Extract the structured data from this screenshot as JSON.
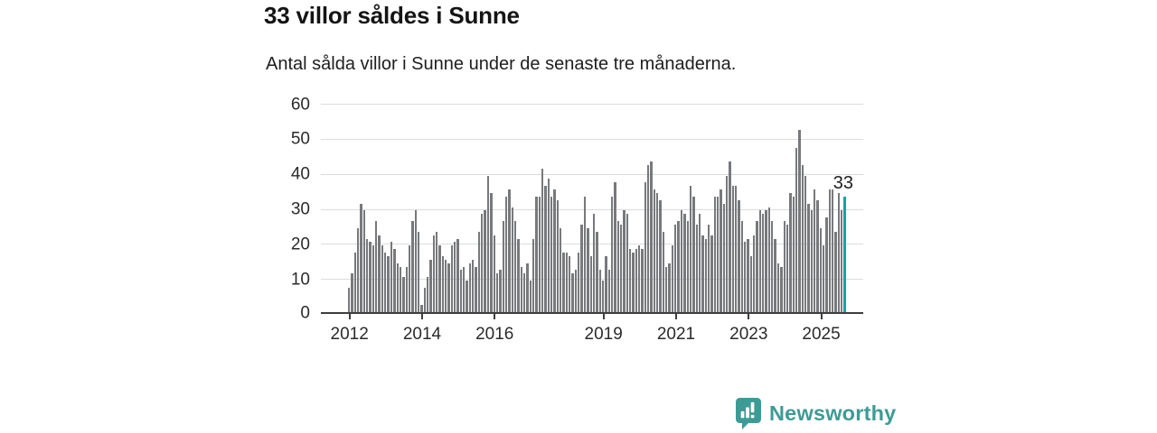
{
  "header": {
    "title": "33 villor såldes i Sunne",
    "subtitle": "Antal sålda villor i Sunne under de senaste tre månaderna."
  },
  "chart_data": {
    "type": "bar",
    "title": "33 villor såldes i Sunne",
    "subtitle": "Antal sålda villor i Sunne under de senaste tre månaderna.",
    "frequency": "monthly",
    "x_start": "2012-01",
    "x_end": "2025-09",
    "ylim": [
      0,
      60
    ],
    "y_ticks": [
      0,
      10,
      20,
      30,
      40,
      50,
      60
    ],
    "x_ticks": [
      {
        "label": "2012",
        "index": 0
      },
      {
        "label": "2014",
        "index": 24
      },
      {
        "label": "2016",
        "index": 48
      },
      {
        "label": "2019",
        "index": 84
      },
      {
        "label": "2021",
        "index": 108
      },
      {
        "label": "2023",
        "index": 132
      },
      {
        "label": "2025",
        "index": 156
      }
    ],
    "grid": "horizontal",
    "legend": "none",
    "bar_color": "#77797c",
    "axis_color": "#3e3e3e",
    "gridline_color": "#dbdcde",
    "values": [
      7,
      11,
      17,
      24,
      31,
      29,
      21,
      20,
      19,
      26,
      22,
      19,
      17,
      16,
      20,
      18,
      14,
      13,
      10,
      13,
      19,
      26,
      29,
      23,
      2,
      7,
      10,
      15,
      22,
      23,
      19,
      16,
      15,
      14,
      19,
      20,
      21,
      12,
      13,
      9,
      14,
      15,
      13,
      23,
      28,
      29,
      39,
      34,
      22,
      11,
      12,
      26,
      33,
      35,
      30,
      26,
      21,
      13,
      11,
      14,
      9,
      21,
      33,
      33,
      41,
      36,
      38,
      33,
      35,
      32,
      24,
      17,
      17,
      16,
      11,
      12,
      17,
      25,
      33,
      24,
      16,
      28,
      23,
      12,
      9,
      16,
      12,
      33,
      37,
      26,
      25,
      29,
      28,
      18,
      17,
      18,
      19,
      18,
      37,
      42,
      43,
      35,
      34,
      32,
      23,
      13,
      14,
      19,
      25,
      26,
      29,
      28,
      26,
      36,
      33,
      25,
      28,
      22,
      21,
      25,
      22,
      33,
      33,
      35,
      31,
      39,
      43,
      36,
      36,
      32,
      26,
      20,
      21,
      16,
      22,
      26,
      29,
      28,
      29,
      30,
      26,
      21,
      14,
      13,
      26,
      25,
      34,
      33,
      47,
      52,
      42,
      39,
      31,
      29,
      35,
      32,
      24,
      19,
      27,
      35,
      35,
      23,
      34,
      29,
      33
    ],
    "highlight": {
      "index": 164,
      "value": 33,
      "label": "33",
      "color": "#14a5a1"
    }
  },
  "footer": {
    "brand": "Newsworthy",
    "brand_color": "#3d9b95",
    "logo_icon": "speech-bubble-bar-chart-icon"
  }
}
